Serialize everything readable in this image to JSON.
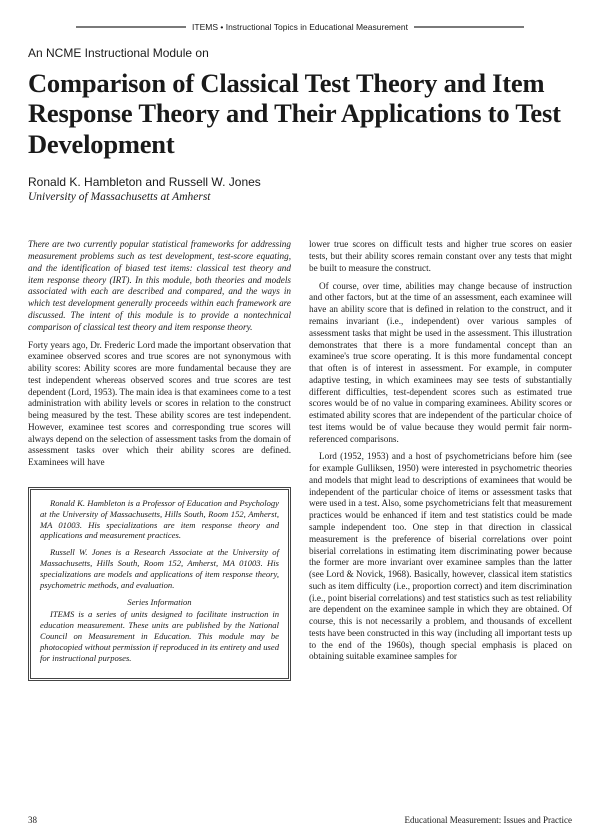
{
  "header": {
    "label": "ITEMS • Instructional Topics in Educational Measurement"
  },
  "subhead": "An NCME Instructional Module on",
  "title": "Comparison of Classical Test Theory and Item Response Theory and Their Applications to Test Development",
  "authors": "Ronald K. Hambleton and Russell W. Jones",
  "affiliation": "University of Massachusetts at Amherst",
  "abstract": "There are two currently popular statistical frameworks for addressing measurement problems such as test development, test-score equating, and the identification of biased test items: classical test theory and item response theory (IRT). In this module, both theories and models associated with each are described and compared, and the ways in which test development generally proceeds within each framework are discussed. The intent of this module is to provide a nontechnical comparison of classical test theory and item response theory.",
  "left_body_1": "Forty years ago, Dr. Frederic Lord made the important observation that examinee observed scores and true scores are not synonymous with ability scores: Ability scores are more fundamental because they are test independent whereas observed scores and true scores are test dependent (Lord, 1953). The main idea is that examinees come to a test administration with ability levels or scores in relation to the construct being measured by the test. These ability scores are test independent. However, examinee test scores and corresponding true scores will always depend on the selection of assessment tasks from the domain of assessment tasks over which their ability scores are defined. Examinees will have",
  "bio": {
    "p1": "Ronald K. Hambleton is a Professor of Education and Psychology at the University of Massachusetts, Hills South, Room 152, Amherst, MA 01003. His specializations are item response theory and applications and measurement practices.",
    "p2": "Russell W. Jones is a Research Associate at the University of Massachusetts, Hills South, Room 152, Amherst, MA 01003. His specializations are models and applications of item response theory, psychometric methods, and evaluation.",
    "series_label": "Series Information",
    "p3": "ITEMS is a series of units designed to facilitate instruction in education measurement. These units are published by the National Council on Measurement in Education. This module may be photocopied without permission if reproduced in its entirety and used for instructional purposes."
  },
  "right_body_1": "lower true scores on difficult tests and higher true scores on easier tests, but their ability scores remain constant over any tests that might be built to measure the construct.",
  "right_body_2": "Of course, over time, abilities may change because of instruction and other factors, but at the time of an assessment, each examinee will have an ability score that is defined in relation to the construct, and it remains invariant (i.e., independent) over various samples of assessment tasks that might be used in the assessment. This illustration demonstrates that there is a more fundamental concept than an examinee's true score operating. It is this more fundamental concept that often is of interest in assessment. For example, in computer adaptive testing, in which examinees may see tests of substantially different difficulties, test-dependent scores such as estimated true scores would be of no value in comparing examinees. Ability scores or estimated ability scores that are independent of the particular choice of test items would be of value because they would permit fair norm-referenced comparisons.",
  "right_body_3": "Lord (1952, 1953) and a host of psychometricians before him (see for example Gulliksen, 1950) were interested in psychometric theories and models that might lead to descriptions of examinees that would be independent of the particular choice of items or assessment tasks that were used in a test. Also, some psychometricians felt that measurement practices would be enhanced if item and test statistics could be made sample independent too. One step in that direction in classical measurement is the preference of biserial correlations over point biserial correlations in estimating item discriminating power because the former are more invariant over examinee samples than the latter (see Lord & Novick, 1968). Basically, however, classical item statistics such as item difficulty (i.e., proportion correct) and item discrimination (i.e., point biserial correlations) and test statistics such as test reliability are dependent on the examinee sample in which they are obtained. Of course, this is not necessarily a problem, and thousands of excellent tests have been constructed in this way (including all important tests up to the end of the 1960s), though special emphasis is placed on obtaining suitable examinee samples for",
  "footer": {
    "page": "38",
    "journal": "Educational Measurement: Issues and Practice"
  }
}
